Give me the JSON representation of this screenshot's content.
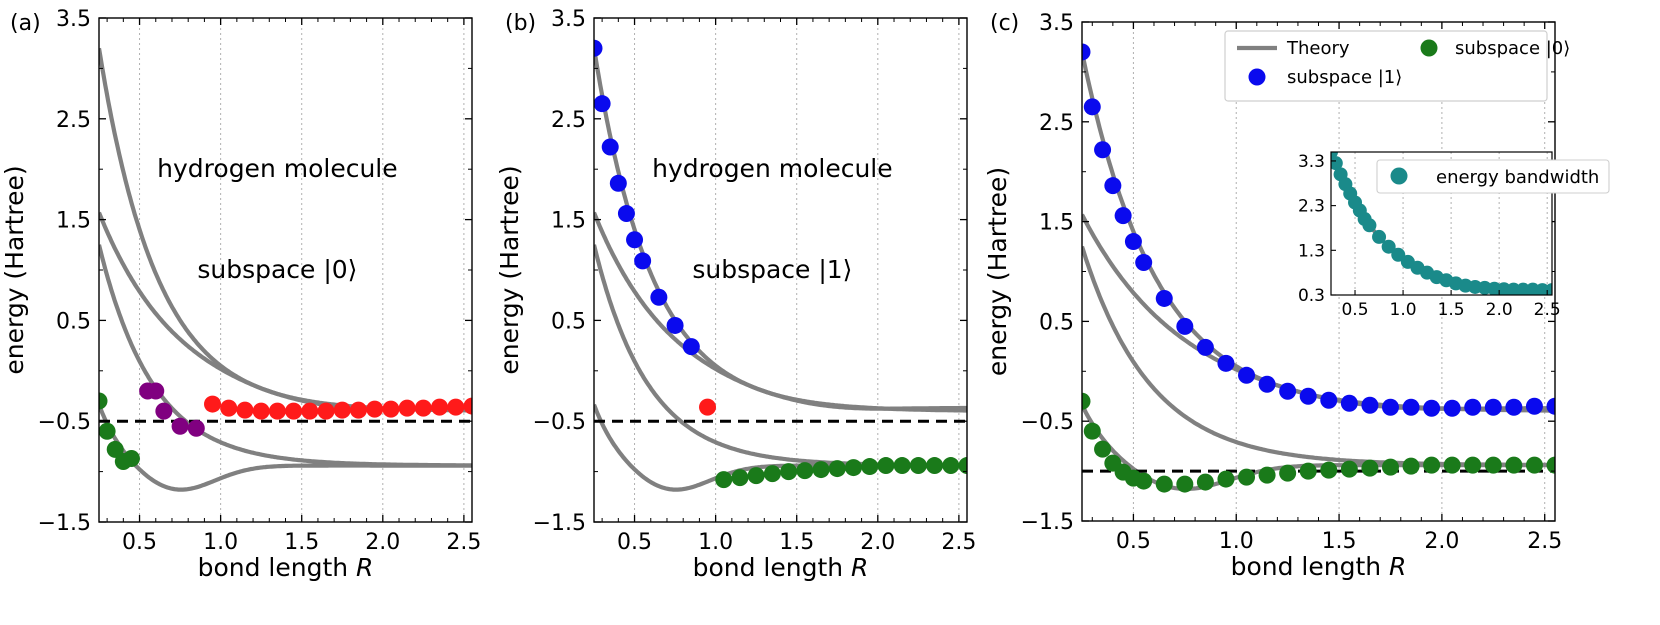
{
  "chart_data": [
    {
      "type": "line+scatter",
      "panel_label": "(a)",
      "annotations": [
        "hydrogen molecule",
        "subspace |0⟩"
      ],
      "xlabel": "bond length ",
      "xlabel_italic": "R",
      "ylabel": "energy (Hartree)",
      "xlim": [
        0.25,
        2.55
      ],
      "ylim": [
        -1.5,
        3.5
      ],
      "xticks": [
        "0.5",
        "1.0",
        "1.5",
        "2.0",
        "2.5"
      ],
      "yticks": [
        "−1.5",
        "−0.5",
        "0.5",
        "1.5",
        "2.5",
        "3.5"
      ],
      "dashed_line": -0.5,
      "theory_curves": [
        "E3",
        "E2",
        "E1",
        "E0"
      ],
      "series": [
        {
          "name": "green",
          "color": "#1a7a1a",
          "x": [
            0.25,
            0.3,
            0.35,
            0.4,
            0.45
          ],
          "y": [
            -0.3,
            -0.6,
            -0.78,
            -0.9,
            -0.87
          ]
        },
        {
          "name": "purple",
          "color": "#800080",
          "x": [
            0.55,
            0.6,
            0.65,
            0.75,
            0.85
          ],
          "y": [
            -0.2,
            -0.2,
            -0.4,
            -0.55,
            -0.57
          ]
        },
        {
          "name": "red",
          "color": "#ff1a1a",
          "x": [
            0.95,
            1.05,
            1.15,
            1.25,
            1.35,
            1.45,
            1.55,
            1.65,
            1.75,
            1.85,
            1.95,
            2.05,
            2.15,
            2.25,
            2.35,
            2.45,
            2.55
          ],
          "y": [
            -0.33,
            -0.37,
            -0.39,
            -0.4,
            -0.4,
            -0.4,
            -0.4,
            -0.4,
            -0.39,
            -0.39,
            -0.38,
            -0.38,
            -0.37,
            -0.37,
            -0.36,
            -0.36,
            -0.35
          ]
        }
      ]
    },
    {
      "type": "line+scatter",
      "panel_label": "(b)",
      "annotations": [
        "hydrogen molecule",
        "subspace |1⟩"
      ],
      "xlabel": "bond length ",
      "xlabel_italic": "R",
      "ylabel": "energy (Hartree)",
      "xlim": [
        0.25,
        2.55
      ],
      "ylim": [
        -1.5,
        3.5
      ],
      "xticks": [
        "0.5",
        "1.0",
        "1.5",
        "2.0",
        "2.5"
      ],
      "yticks": [
        "−1.5",
        "−0.5",
        "0.5",
        "1.5",
        "2.5",
        "3.5"
      ],
      "dashed_line": -0.5,
      "theory_curves": [
        "E3",
        "E2",
        "E1",
        "E0"
      ],
      "series": [
        {
          "name": "blue",
          "color": "#0a0aee",
          "x": [
            0.25,
            0.3,
            0.35,
            0.4,
            0.45,
            0.5,
            0.55,
            0.65,
            0.75,
            0.85
          ],
          "y": [
            3.2,
            2.65,
            2.22,
            1.86,
            1.56,
            1.3,
            1.09,
            0.73,
            0.45,
            0.24
          ]
        },
        {
          "name": "red",
          "color": "#ff1a1a",
          "x": [
            0.95
          ],
          "y": [
            -0.36
          ]
        },
        {
          "name": "green",
          "color": "#1a7a1a",
          "x": [
            1.05,
            1.15,
            1.25,
            1.35,
            1.45,
            1.55,
            1.65,
            1.75,
            1.85,
            1.95,
            2.05,
            2.15,
            2.25,
            2.35,
            2.45,
            2.55
          ],
          "y": [
            -1.08,
            -1.06,
            -1.04,
            -1.02,
            -1.0,
            -0.99,
            -0.98,
            -0.97,
            -0.96,
            -0.95,
            -0.94,
            -0.94,
            -0.94,
            -0.94,
            -0.94,
            -0.94
          ]
        }
      ]
    },
    {
      "type": "line+scatter",
      "panel_label": "(c)",
      "xlabel": "bond length ",
      "xlabel_italic": "R",
      "ylabel": "energy (Hartree)",
      "xlim": [
        0.25,
        2.55
      ],
      "ylim": [
        -1.5,
        3.5
      ],
      "xticks": [
        "0.5",
        "1.0",
        "1.5",
        "2.0",
        "2.5"
      ],
      "yticks": [
        "−1.5",
        "−0.5",
        "0.5",
        "1.5",
        "2.5",
        "3.5"
      ],
      "dashed_line": -1.0,
      "theory_curves": [
        "E3",
        "E2",
        "E1",
        "E0"
      ],
      "legend": [
        "Theory",
        "subspace |1⟩",
        "subspace |0⟩"
      ],
      "legend_position": "top-right",
      "series": [
        {
          "name": "subspace |1⟩",
          "color": "#0a0aee",
          "x": [
            0.25,
            0.3,
            0.35,
            0.4,
            0.45,
            0.5,
            0.55,
            0.65,
            0.75,
            0.85,
            0.95,
            1.05,
            1.15,
            1.25,
            1.35,
            1.45,
            1.55,
            1.65,
            1.75,
            1.85,
            1.95,
            2.05,
            2.15,
            2.25,
            2.35,
            2.45,
            2.55
          ],
          "y": [
            3.2,
            2.65,
            2.22,
            1.86,
            1.56,
            1.3,
            1.09,
            0.73,
            0.45,
            0.24,
            0.08,
            -0.04,
            -0.13,
            -0.2,
            -0.25,
            -0.29,
            -0.32,
            -0.34,
            -0.36,
            -0.36,
            -0.37,
            -0.37,
            -0.36,
            -0.36,
            -0.36,
            -0.35,
            -0.35
          ]
        },
        {
          "name": "subspace |0⟩",
          "color": "#1a7a1a",
          "x": [
            0.25,
            0.3,
            0.35,
            0.4,
            0.45,
            0.5,
            0.55,
            0.65,
            0.75,
            0.85,
            0.95,
            1.05,
            1.15,
            1.25,
            1.35,
            1.45,
            1.55,
            1.65,
            1.75,
            1.85,
            1.95,
            2.05,
            2.15,
            2.25,
            2.35,
            2.45,
            2.55
          ],
          "y": [
            -0.3,
            -0.6,
            -0.78,
            -0.92,
            -1.01,
            -1.07,
            -1.1,
            -1.13,
            -1.13,
            -1.11,
            -1.08,
            -1.06,
            -1.04,
            -1.02,
            -1.0,
            -0.99,
            -0.98,
            -0.97,
            -0.96,
            -0.95,
            -0.94,
            -0.94,
            -0.94,
            -0.94,
            -0.94,
            -0.94,
            -0.94
          ]
        }
      ],
      "inset": {
        "type": "line+scatter",
        "legend": [
          "energy bandwidth"
        ],
        "xlim": [
          0.25,
          2.55
        ],
        "ylim": [
          0.3,
          3.5
        ],
        "xticks": [
          "0.5",
          "1.0",
          "1.5",
          "2.0",
          "2.5"
        ],
        "yticks": [
          "0.3",
          "1.3",
          "2.3",
          "3.3"
        ],
        "color": "#1a8a8a",
        "x": [
          0.25,
          0.3,
          0.35,
          0.4,
          0.45,
          0.5,
          0.55,
          0.6,
          0.65,
          0.75,
          0.85,
          0.95,
          1.05,
          1.15,
          1.25,
          1.35,
          1.45,
          1.55,
          1.65,
          1.75,
          1.85,
          1.95,
          2.05,
          2.15,
          2.25,
          2.35,
          2.45,
          2.55
        ],
        "y": [
          3.5,
          3.25,
          3.0,
          2.78,
          2.57,
          2.37,
          2.19,
          2.0,
          1.86,
          1.6,
          1.38,
          1.2,
          1.04,
          0.91,
          0.8,
          0.7,
          0.63,
          0.56,
          0.51,
          0.48,
          0.46,
          0.44,
          0.43,
          0.42,
          0.42,
          0.42,
          0.41,
          0.41
        ]
      }
    }
  ]
}
